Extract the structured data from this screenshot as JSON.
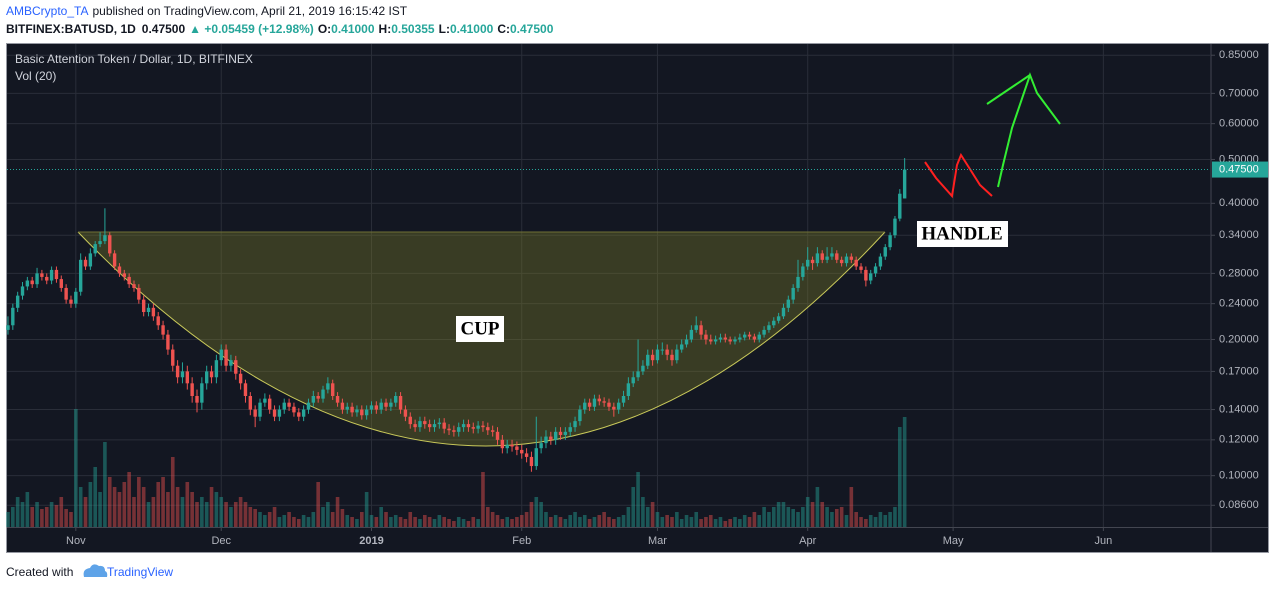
{
  "header": {
    "author": "AMBCrypto_TA",
    "published": "published on TradingView.com, April 21, 2019 16:15:42 IST",
    "symbol": "BITFINEX:BATUSD, 1D",
    "price": "0.47500",
    "change": "▲ +0.05459 (+12.98%)",
    "ohlc": [
      {
        "key": "O:",
        "value": "0.41000"
      },
      {
        "key": "H:",
        "value": "0.50355"
      },
      {
        "key": "L:",
        "value": "0.41000"
      },
      {
        "key": "C:",
        "value": "0.47500"
      }
    ]
  },
  "chart_data": {
    "type": "candlestick",
    "title": "Basic Attention Token / Dollar, 1D, BITFINEX",
    "indicator": "Vol (20)",
    "log_scale": true,
    "grid": true,
    "colors": {
      "up": "#26a69a",
      "down": "#ef5350"
    },
    "xlim": [
      -0.2,
      248
    ],
    "xticks": [
      {
        "value": 14,
        "label": "Nov"
      },
      {
        "value": 44,
        "label": "Dec"
      },
      {
        "value": 75,
        "label": "2019"
      },
      {
        "value": 106,
        "label": "Feb"
      },
      {
        "value": 134,
        "label": "Mar"
      },
      {
        "value": 165,
        "label": "Apr"
      },
      {
        "value": 195,
        "label": "May"
      },
      {
        "value": 226,
        "label": "Jun"
      }
    ],
    "ylim": [
      0.077,
      0.9
    ],
    "yticks": [
      {
        "value": 0.85,
        "label": "0.85000"
      },
      {
        "value": 0.7,
        "label": "0.70000"
      },
      {
        "value": 0.6,
        "label": "0.60000"
      },
      {
        "value": 0.5,
        "label": "0.50000"
      },
      {
        "value": 0.4,
        "label": "0.40000"
      },
      {
        "value": 0.34,
        "label": "0.34000"
      },
      {
        "value": 0.28,
        "label": "0.28000"
      },
      {
        "value": 0.24,
        "label": "0.24000"
      },
      {
        "value": 0.2,
        "label": "0.20000"
      },
      {
        "value": 0.17,
        "label": "0.17000"
      },
      {
        "value": 0.14,
        "label": "0.14000"
      },
      {
        "value": 0.12,
        "label": "0.12000"
      },
      {
        "value": 0.1,
        "label": "0.10000"
      },
      {
        "value": 0.086,
        "label": "0.08600"
      }
    ],
    "last_price": {
      "value": 0.475,
      "label": "0.47500"
    },
    "annotations": [
      "CUP",
      "HANDLE"
    ],
    "candles": [
      [
        0.21,
        0.225,
        0.205,
        0.215
      ],
      [
        0.215,
        0.24,
        0.21,
        0.235
      ],
      [
        0.235,
        0.255,
        0.23,
        0.25
      ],
      [
        0.25,
        0.268,
        0.245,
        0.262
      ],
      [
        0.262,
        0.275,
        0.257,
        0.27
      ],
      [
        0.27,
        0.275,
        0.26,
        0.265
      ],
      [
        0.265,
        0.288,
        0.26,
        0.28
      ],
      [
        0.28,
        0.285,
        0.27,
        0.275
      ],
      [
        0.275,
        0.28,
        0.265,
        0.27
      ],
      [
        0.27,
        0.29,
        0.265,
        0.285
      ],
      [
        0.285,
        0.29,
        0.267,
        0.272
      ],
      [
        0.272,
        0.277,
        0.255,
        0.26
      ],
      [
        0.26,
        0.265,
        0.24,
        0.245
      ],
      [
        0.245,
        0.25,
        0.235,
        0.24
      ],
      [
        0.24,
        0.26,
        0.235,
        0.255
      ],
      [
        0.255,
        0.31,
        0.25,
        0.3
      ],
      [
        0.3,
        0.305,
        0.285,
        0.29
      ],
      [
        0.29,
        0.318,
        0.285,
        0.31
      ],
      [
        0.31,
        0.33,
        0.305,
        0.325
      ],
      [
        0.325,
        0.345,
        0.32,
        0.33
      ],
      [
        0.33,
        0.39,
        0.325,
        0.34
      ],
      [
        0.34,
        0.345,
        0.305,
        0.31
      ],
      [
        0.31,
        0.315,
        0.285,
        0.29
      ],
      [
        0.29,
        0.295,
        0.275,
        0.28
      ],
      [
        0.28,
        0.285,
        0.27,
        0.275
      ],
      [
        0.275,
        0.28,
        0.26,
        0.265
      ],
      [
        0.265,
        0.27,
        0.255,
        0.26
      ],
      [
        0.26,
        0.265,
        0.24,
        0.245
      ],
      [
        0.245,
        0.25,
        0.225,
        0.23
      ],
      [
        0.23,
        0.24,
        0.225,
        0.235
      ],
      [
        0.235,
        0.24,
        0.22,
        0.225
      ],
      [
        0.225,
        0.23,
        0.21,
        0.215
      ],
      [
        0.215,
        0.22,
        0.2,
        0.205
      ],
      [
        0.205,
        0.21,
        0.185,
        0.19
      ],
      [
        0.19,
        0.195,
        0.17,
        0.175
      ],
      [
        0.175,
        0.18,
        0.16,
        0.165
      ],
      [
        0.165,
        0.178,
        0.16,
        0.17
      ],
      [
        0.17,
        0.175,
        0.155,
        0.16
      ],
      [
        0.16,
        0.165,
        0.145,
        0.15
      ],
      [
        0.15,
        0.155,
        0.138,
        0.145
      ],
      [
        0.145,
        0.165,
        0.14,
        0.16
      ],
      [
        0.16,
        0.175,
        0.155,
        0.17
      ],
      [
        0.17,
        0.175,
        0.16,
        0.165
      ],
      [
        0.165,
        0.185,
        0.16,
        0.18
      ],
      [
        0.18,
        0.195,
        0.175,
        0.19
      ],
      [
        0.19,
        0.195,
        0.17,
        0.175
      ],
      [
        0.175,
        0.185,
        0.17,
        0.18
      ],
      [
        0.18,
        0.184,
        0.163,
        0.168
      ],
      [
        0.168,
        0.172,
        0.155,
        0.16
      ],
      [
        0.16,
        0.163,
        0.145,
        0.15
      ],
      [
        0.15,
        0.153,
        0.136,
        0.14
      ],
      [
        0.14,
        0.143,
        0.128,
        0.135
      ],
      [
        0.135,
        0.148,
        0.132,
        0.145
      ],
      [
        0.145,
        0.152,
        0.142,
        0.148
      ],
      [
        0.148,
        0.151,
        0.137,
        0.14
      ],
      [
        0.14,
        0.143,
        0.132,
        0.135
      ],
      [
        0.135,
        0.143,
        0.132,
        0.14
      ],
      [
        0.14,
        0.148,
        0.137,
        0.145
      ],
      [
        0.145,
        0.148,
        0.139,
        0.142
      ],
      [
        0.142,
        0.145,
        0.135,
        0.138
      ],
      [
        0.138,
        0.141,
        0.132,
        0.135
      ],
      [
        0.135,
        0.143,
        0.132,
        0.14
      ],
      [
        0.14,
        0.148,
        0.137,
        0.145
      ],
      [
        0.145,
        0.154,
        0.142,
        0.15
      ],
      [
        0.15,
        0.153,
        0.145,
        0.148
      ],
      [
        0.148,
        0.158,
        0.145,
        0.155
      ],
      [
        0.155,
        0.165,
        0.152,
        0.16
      ],
      [
        0.16,
        0.163,
        0.147,
        0.15
      ],
      [
        0.15,
        0.153,
        0.142,
        0.145
      ],
      [
        0.145,
        0.148,
        0.137,
        0.14
      ],
      [
        0.14,
        0.145,
        0.137,
        0.142
      ],
      [
        0.142,
        0.145,
        0.135,
        0.138
      ],
      [
        0.138,
        0.143,
        0.135,
        0.14
      ],
      [
        0.14,
        0.143,
        0.133,
        0.136
      ],
      [
        0.136,
        0.143,
        0.133,
        0.14
      ],
      [
        0.14,
        0.146,
        0.137,
        0.143
      ],
      [
        0.143,
        0.146,
        0.137,
        0.14
      ],
      [
        0.14,
        0.148,
        0.137,
        0.145
      ],
      [
        0.145,
        0.148,
        0.139,
        0.142
      ],
      [
        0.142,
        0.148,
        0.139,
        0.145
      ],
      [
        0.145,
        0.153,
        0.142,
        0.15
      ],
      [
        0.15,
        0.153,
        0.137,
        0.14
      ],
      [
        0.14,
        0.143,
        0.132,
        0.135
      ],
      [
        0.135,
        0.138,
        0.127,
        0.13
      ],
      [
        0.13,
        0.133,
        0.125,
        0.128
      ],
      [
        0.128,
        0.135,
        0.125,
        0.132
      ],
      [
        0.132,
        0.135,
        0.127,
        0.13
      ],
      [
        0.13,
        0.133,
        0.125,
        0.128
      ],
      [
        0.128,
        0.133,
        0.125,
        0.13
      ],
      [
        0.13,
        0.134,
        0.127,
        0.131
      ],
      [
        0.131,
        0.134,
        0.124,
        0.127
      ],
      [
        0.127,
        0.13,
        0.123,
        0.126
      ],
      [
        0.126,
        0.129,
        0.122,
        0.125
      ],
      [
        0.125,
        0.131,
        0.122,
        0.128
      ],
      [
        0.128,
        0.133,
        0.125,
        0.13
      ],
      [
        0.13,
        0.133,
        0.125,
        0.128
      ],
      [
        0.128,
        0.131,
        0.124,
        0.127
      ],
      [
        0.127,
        0.132,
        0.124,
        0.129
      ],
      [
        0.129,
        0.132,
        0.125,
        0.128
      ],
      [
        0.128,
        0.131,
        0.123,
        0.126
      ],
      [
        0.126,
        0.129,
        0.122,
        0.125
      ],
      [
        0.125,
        0.128,
        0.117,
        0.12
      ],
      [
        0.12,
        0.123,
        0.112,
        0.115
      ],
      [
        0.115,
        0.12,
        0.112,
        0.117
      ],
      [
        0.117,
        0.12,
        0.113,
        0.116
      ],
      [
        0.116,
        0.119,
        0.111,
        0.114
      ],
      [
        0.114,
        0.117,
        0.109,
        0.112
      ],
      [
        0.112,
        0.115,
        0.107,
        0.11
      ],
      [
        0.11,
        0.113,
        0.102,
        0.105
      ],
      [
        0.105,
        0.135,
        0.103,
        0.115
      ],
      [
        0.115,
        0.122,
        0.112,
        0.118
      ],
      [
        0.118,
        0.126,
        0.115,
        0.122
      ],
      [
        0.122,
        0.125,
        0.117,
        0.12
      ],
      [
        0.12,
        0.128,
        0.117,
        0.125
      ],
      [
        0.125,
        0.128,
        0.12,
        0.123
      ],
      [
        0.123,
        0.128,
        0.12,
        0.125
      ],
      [
        0.125,
        0.131,
        0.122,
        0.128
      ],
      [
        0.128,
        0.135,
        0.125,
        0.132
      ],
      [
        0.132,
        0.143,
        0.129,
        0.14
      ],
      [
        0.14,
        0.148,
        0.137,
        0.145
      ],
      [
        0.145,
        0.148,
        0.139,
        0.142
      ],
      [
        0.142,
        0.151,
        0.139,
        0.148
      ],
      [
        0.148,
        0.151,
        0.143,
        0.146
      ],
      [
        0.146,
        0.149,
        0.142,
        0.145
      ],
      [
        0.145,
        0.148,
        0.139,
        0.142
      ],
      [
        0.142,
        0.145,
        0.135,
        0.14
      ],
      [
        0.14,
        0.148,
        0.137,
        0.145
      ],
      [
        0.145,
        0.154,
        0.142,
        0.15
      ],
      [
        0.15,
        0.165,
        0.147,
        0.16
      ],
      [
        0.16,
        0.17,
        0.157,
        0.165
      ],
      [
        0.165,
        0.2,
        0.162,
        0.17
      ],
      [
        0.17,
        0.18,
        0.167,
        0.175
      ],
      [
        0.175,
        0.19,
        0.172,
        0.185
      ],
      [
        0.185,
        0.19,
        0.175,
        0.18
      ],
      [
        0.18,
        0.195,
        0.177,
        0.19
      ],
      [
        0.19,
        0.197,
        0.185,
        0.19
      ],
      [
        0.19,
        0.195,
        0.18,
        0.185
      ],
      [
        0.185,
        0.19,
        0.175,
        0.18
      ],
      [
        0.18,
        0.195,
        0.177,
        0.19
      ],
      [
        0.19,
        0.2,
        0.187,
        0.195
      ],
      [
        0.195,
        0.205,
        0.192,
        0.2
      ],
      [
        0.2,
        0.215,
        0.197,
        0.21
      ],
      [
        0.21,
        0.225,
        0.207,
        0.215
      ],
      [
        0.215,
        0.22,
        0.2,
        0.205
      ],
      [
        0.205,
        0.21,
        0.195,
        0.2
      ],
      [
        0.2,
        0.205,
        0.195,
        0.198
      ],
      [
        0.198,
        0.204,
        0.195,
        0.2
      ],
      [
        0.2,
        0.206,
        0.197,
        0.202
      ],
      [
        0.202,
        0.206,
        0.197,
        0.2
      ],
      [
        0.2,
        0.203,
        0.195,
        0.198
      ],
      [
        0.198,
        0.203,
        0.195,
        0.2
      ],
      [
        0.2,
        0.206,
        0.197,
        0.202
      ],
      [
        0.202,
        0.208,
        0.199,
        0.205
      ],
      [
        0.205,
        0.208,
        0.2,
        0.203
      ],
      [
        0.203,
        0.206,
        0.197,
        0.2
      ],
      [
        0.2,
        0.208,
        0.197,
        0.205
      ],
      [
        0.205,
        0.214,
        0.202,
        0.21
      ],
      [
        0.21,
        0.219,
        0.207,
        0.215
      ],
      [
        0.215,
        0.224,
        0.212,
        0.22
      ],
      [
        0.22,
        0.229,
        0.217,
        0.225
      ],
      [
        0.225,
        0.24,
        0.222,
        0.235
      ],
      [
        0.235,
        0.25,
        0.23,
        0.245
      ],
      [
        0.245,
        0.265,
        0.24,
        0.26
      ],
      [
        0.26,
        0.3,
        0.255,
        0.275
      ],
      [
        0.275,
        0.295,
        0.27,
        0.29
      ],
      [
        0.29,
        0.32,
        0.285,
        0.3
      ],
      [
        0.3,
        0.305,
        0.285,
        0.295
      ],
      [
        0.295,
        0.32,
        0.29,
        0.31
      ],
      [
        0.31,
        0.315,
        0.295,
        0.3
      ],
      [
        0.3,
        0.32,
        0.295,
        0.305
      ],
      [
        0.305,
        0.32,
        0.3,
        0.31
      ],
      [
        0.31,
        0.315,
        0.295,
        0.3
      ],
      [
        0.3,
        0.305,
        0.29,
        0.295
      ],
      [
        0.295,
        0.31,
        0.29,
        0.305
      ],
      [
        0.305,
        0.31,
        0.295,
        0.3
      ],
      [
        0.3,
        0.305,
        0.285,
        0.29
      ],
      [
        0.29,
        0.295,
        0.28,
        0.285
      ],
      [
        0.285,
        0.29,
        0.262,
        0.27
      ],
      [
        0.27,
        0.285,
        0.265,
        0.28
      ],
      [
        0.28,
        0.295,
        0.275,
        0.29
      ],
      [
        0.29,
        0.31,
        0.285,
        0.305
      ],
      [
        0.305,
        0.325,
        0.3,
        0.32
      ],
      [
        0.32,
        0.345,
        0.315,
        0.34
      ],
      [
        0.34,
        0.375,
        0.335,
        0.37
      ],
      [
        0.37,
        0.43,
        0.365,
        0.42
      ],
      [
        0.41,
        0.50355,
        0.41,
        0.475
      ]
    ],
    "volume": [
      15,
      20,
      30,
      25,
      35,
      20,
      25,
      18,
      20,
      25,
      22,
      30,
      18,
      15,
      118,
      40,
      30,
      45,
      60,
      35,
      85,
      50,
      40,
      35,
      45,
      55,
      30,
      50,
      40,
      25,
      30,
      45,
      50,
      35,
      70,
      40,
      30,
      45,
      35,
      25,
      30,
      25,
      40,
      35,
      30,
      25,
      20,
      25,
      30,
      25,
      20,
      18,
      15,
      12,
      15,
      20,
      10,
      12,
      15,
      10,
      8,
      12,
      10,
      15,
      45,
      20,
      25,
      15,
      30,
      18,
      12,
      10,
      8,
      15,
      35,
      12,
      10,
      20,
      15,
      10,
      12,
      10,
      8,
      15,
      10,
      8,
      12,
      10,
      8,
      12,
      10,
      8,
      6,
      10,
      8,
      6,
      10,
      8,
      55,
      20,
      15,
      12,
      8,
      10,
      8,
      10,
      12,
      15,
      25,
      30,
      25,
      15,
      10,
      12,
      10,
      8,
      12,
      15,
      10,
      12,
      8,
      10,
      12,
      15,
      10,
      8,
      10,
      12,
      20,
      40,
      55,
      30,
      20,
      25,
      15,
      10,
      12,
      10,
      15,
      8,
      12,
      10,
      15,
      8,
      10,
      12,
      8,
      10,
      6,
      8,
      10,
      8,
      12,
      10,
      15,
      12,
      20,
      15,
      20,
      25,
      25,
      20,
      18,
      15,
      20,
      30,
      25,
      40,
      25,
      20,
      15,
      18,
      20,
      12,
      40,
      15,
      10,
      8,
      12,
      10,
      15,
      12,
      15,
      20,
      100,
      110
    ]
  },
  "footer": {
    "created": "Created with",
    "brand": "TradingView"
  }
}
